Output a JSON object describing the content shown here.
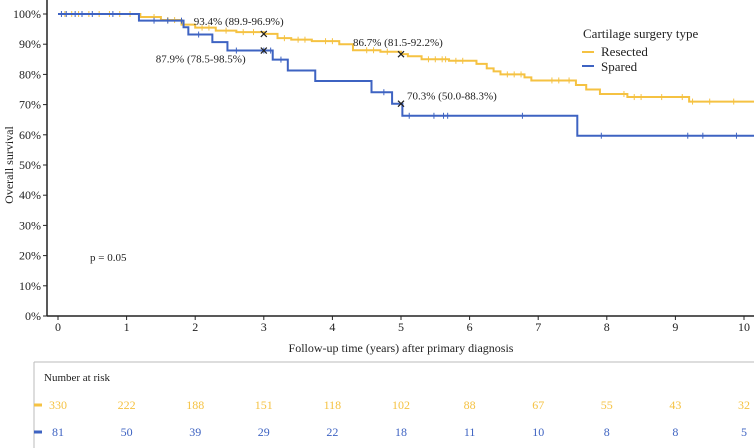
{
  "chart_data": {
    "type": "line",
    "subtype": "kaplan-meier",
    "xlabel": "Follow-up time (years) after primary diagnosis",
    "ylabel": "Overall survival",
    "xlim": [
      0,
      10.2
    ],
    "ylim": [
      0,
      100
    ],
    "x_ticks": [
      "0",
      "1",
      "2",
      "3",
      "4",
      "5",
      "6",
      "7",
      "8",
      "9",
      "10"
    ],
    "y_ticks": [
      "0%",
      "10%",
      "20%",
      "30%",
      "40%",
      "50%",
      "60%",
      "70%",
      "80%",
      "90%",
      "100%"
    ],
    "legend": {
      "title": "Cartilage surgery type",
      "placement": "top-right"
    },
    "p_value_label": "p = 0.05",
    "series": [
      {
        "name": "Resected",
        "color": "#F5C242",
        "steps": [
          [
            0,
            100
          ],
          [
            1.2,
            99
          ],
          [
            1.5,
            98
          ],
          [
            1.8,
            96.5
          ],
          [
            2.0,
            95.5
          ],
          [
            2.3,
            94.5
          ],
          [
            2.6,
            94
          ],
          [
            3.0,
            93.4
          ],
          [
            3.2,
            92
          ],
          [
            3.4,
            91.5
          ],
          [
            3.7,
            91
          ],
          [
            4.1,
            90
          ],
          [
            4.3,
            88
          ],
          [
            4.7,
            87.5
          ],
          [
            5.0,
            86.7
          ],
          [
            5.1,
            86
          ],
          [
            5.3,
            85
          ],
          [
            5.7,
            84.5
          ],
          [
            6.1,
            83.5
          ],
          [
            6.25,
            82
          ],
          [
            6.35,
            81
          ],
          [
            6.45,
            80
          ],
          [
            6.8,
            79
          ],
          [
            6.9,
            78
          ],
          [
            7.55,
            76.5
          ],
          [
            7.7,
            75
          ],
          [
            7.9,
            73.5
          ],
          [
            8.3,
            72.5
          ],
          [
            9.2,
            71
          ],
          [
            10.2,
            71
          ]
        ],
        "censored": [
          0.1,
          0.2,
          0.3,
          0.45,
          0.6,
          0.75,
          0.9,
          1.05,
          1.4,
          1.6,
          1.7,
          2.1,
          2.2,
          2.45,
          2.7,
          2.85,
          3.3,
          3.5,
          3.6,
          3.9,
          4.0,
          4.5,
          4.6,
          4.8,
          5.4,
          5.5,
          5.6,
          5.65,
          5.8,
          5.9,
          6.55,
          6.65,
          6.75,
          7.2,
          7.3,
          7.45,
          8.25,
          8.4,
          8.5,
          8.8,
          9.1,
          9.25,
          9.5,
          9.85
        ]
      },
      {
        "name": "Spared",
        "color": "#3E63C2",
        "steps": [
          [
            0,
            100
          ],
          [
            1.18,
            97.8
          ],
          [
            1.83,
            95.6
          ],
          [
            1.9,
            93.2
          ],
          [
            2.25,
            90.7
          ],
          [
            2.47,
            87.9
          ],
          [
            3.13,
            84.9
          ],
          [
            3.35,
            81.3
          ],
          [
            3.75,
            77.8
          ],
          [
            4.57,
            74.1
          ],
          [
            4.87,
            70.3
          ],
          [
            5.02,
            66.3
          ],
          [
            7.57,
            59.7
          ],
          [
            10.2,
            59.7
          ]
        ],
        "censored": [
          0.05,
          0.12,
          0.25,
          0.35,
          0.5,
          0.8,
          1.4,
          1.6,
          1.8,
          2.05,
          2.6,
          3.0,
          3.1,
          3.25,
          4.75,
          5.12,
          5.48,
          5.62,
          5.68,
          6.77,
          7.92,
          9.18,
          9.4,
          9.89
        ]
      }
    ],
    "annotations": [
      {
        "series": "Resected",
        "x": 3,
        "y": 93.4,
        "text": "93.4% (89.9-96.9%)"
      },
      {
        "series": "Spared",
        "x": 3,
        "y": 87.9,
        "text": "87.9% (78.5-98.5%)"
      },
      {
        "series": "Resected",
        "x": 5,
        "y": 86.7,
        "text": "86.7% (81.5-92.2%)"
      },
      {
        "series": "Spared",
        "x": 5,
        "y": 70.3,
        "text": "70.3% (50.0-88.3%)"
      }
    ],
    "risk_table": {
      "title": "Number at risk",
      "times": [
        0,
        1,
        2,
        3,
        4,
        5,
        6,
        7,
        8,
        9,
        10
      ],
      "rows": [
        {
          "name": "Resected",
          "values": [
            "330",
            "222",
            "188",
            "151",
            "118",
            "102",
            "88",
            "67",
            "55",
            "43",
            "32"
          ]
        },
        {
          "name": "Spared",
          "values": [
            "81",
            "50",
            "39",
            "29",
            "22",
            "18",
            "11",
            "10",
            "8",
            "8",
            "5"
          ]
        }
      ]
    }
  }
}
